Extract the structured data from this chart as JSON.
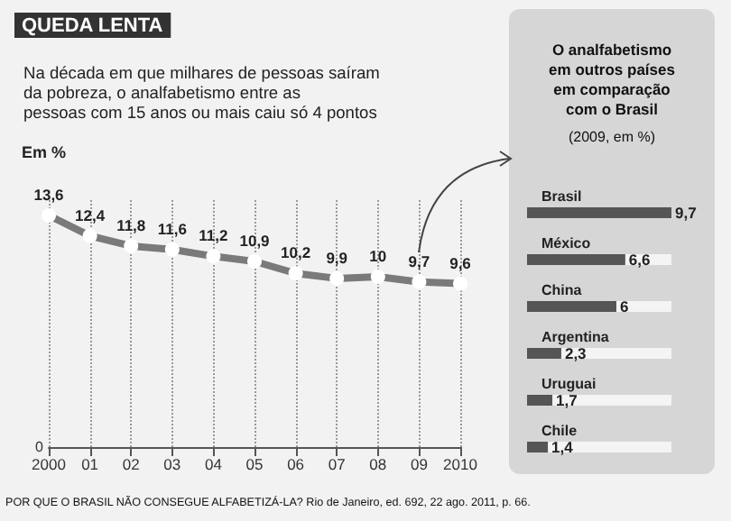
{
  "chart_data": [
    {
      "type": "line",
      "title": "QUEDA LENTA",
      "subtitle": "Na década em que milhares de pessoas saíram\nda pobreza, o analfabetismo entre as\npessoas com 15 anos ou mais caiu só 4 pontos",
      "ylabel": "Em %",
      "categories": [
        "2000",
        "01",
        "02",
        "03",
        "04",
        "05",
        "06",
        "07",
        "08",
        "09",
        "2010"
      ],
      "series": [
        {
          "color": "#7a7a7a",
          "values": [
            13.6,
            12.4,
            11.8,
            11.6,
            11.2,
            10.9,
            10.2,
            9.9,
            10,
            9.7,
            9.6
          ],
          "value_labels": [
            "13,6",
            "12,4",
            "11,8",
            "11,6",
            "11,2",
            "10,9",
            "10,2",
            "9,9",
            "10",
            "9,7",
            "9,6"
          ]
        }
      ],
      "grid": "x",
      "marker": "circle",
      "annotations": [
        "0",
        "POR QUE O BRASIL NÃO CONSEGUE ALFABETIZÁ-LA? Rio de Janeiro, ed. 692, 22 ago. 2011, p. 66."
      ]
    },
    {
      "type": "bar",
      "orientation": "horizontal",
      "title": "O analfabetismo\nem outros países\nem comparação\ncom o Brasil",
      "subtitle": "(2009, em %)",
      "categories": [
        "Brasil",
        "México",
        "China",
        "Argentina",
        "Uruguai",
        "Chile"
      ],
      "series": [
        {
          "color": "#555555",
          "values": [
            9.7,
            6.6,
            6,
            2.3,
            1.7,
            1.4
          ],
          "value_labels": [
            "9,7",
            "6,6",
            "6",
            "2,3",
            "1,7",
            "1,4"
          ]
        }
      ]
    }
  ]
}
